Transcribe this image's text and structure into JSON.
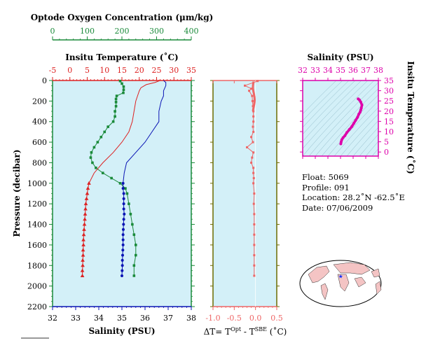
{
  "colors": {
    "oxygen": "#1a8a3a",
    "temperature": "#dd2222",
    "salinity": "#0a14b4",
    "delta": "#ee6666",
    "ts": "#dd00aa",
    "panel_bg": "#d3f0f8",
    "pressure_axis": "#1a8a3a",
    "land": "#f4c4c4"
  },
  "labels": {
    "oxygen_axis": "Optode Oxygen Concentration (μm/kg)",
    "temperature_axis": "Insitu Temperature (˚C)",
    "salinity_axis": "Salinity (PSU)",
    "pressure_axis": "Pressure (decibar)",
    "delta_axis": "ΔT= T",
    "delta_sup1": "Opt",
    "delta_mid": " - T",
    "delta_sup2": "SBE",
    "delta_unit": " (˚C)",
    "ts_top": "Salinity (PSU)",
    "ts_right": "Insitu Temperature (˚C)"
  },
  "info": {
    "float": "Float:  5069",
    "profile": "Profile:  091",
    "location": "Location:  28.2˚N  -62.5˚E",
    "date": "Date:  07/06/2009"
  },
  "chart_data": [
    {
      "type": "line",
      "name": "profile",
      "y_axis": {
        "label": "Pressure (decibar)",
        "range": [
          0,
          2200
        ],
        "ticks": [
          0,
          200,
          400,
          600,
          800,
          1000,
          1200,
          1400,
          1600,
          1800,
          2000,
          2200
        ],
        "inverted": true
      },
      "axes": {
        "oxygen": {
          "range": [
            0,
            400
          ],
          "ticks": [
            0,
            100,
            200,
            300,
            400
          ]
        },
        "temperature": {
          "range": [
            -5,
            35
          ],
          "ticks": [
            -5,
            0,
            5,
            10,
            15,
            20,
            25,
            30,
            35
          ]
        },
        "salinity": {
          "range": [
            32,
            38
          ],
          "ticks": [
            32,
            33,
            34,
            35,
            36,
            37,
            38
          ]
        }
      },
      "series": {
        "oxygen": {
          "p": [
            5,
            30,
            60,
            90,
            120,
            150,
            180,
            210,
            250,
            300,
            350,
            400,
            450,
            500,
            550,
            600,
            650,
            700,
            750,
            800,
            850,
            900,
            950,
            1000,
            1050,
            1100,
            1200,
            1300,
            1400,
            1500,
            1600,
            1700,
            1800,
            1900
          ],
          "o2": [
            195,
            200,
            205,
            205,
            204,
            185,
            183,
            183,
            183,
            180,
            180,
            175,
            160,
            150,
            140,
            130,
            120,
            112,
            110,
            115,
            125,
            145,
            170,
            195,
            210,
            215,
            220,
            225,
            230,
            235,
            240,
            240,
            235,
            235
          ]
        },
        "temperature_continuous": {
          "p": [
            0,
            20,
            40,
            70,
            100,
            150,
            200,
            300,
            400,
            500,
            600,
            700,
            800,
            900,
            1000
          ],
          "t": [
            26,
            24.5,
            22,
            20.5,
            20,
            19.5,
            19,
            18.5,
            18,
            17,
            15,
            12.5,
            9.5,
            7,
            5.5
          ]
        },
        "temperature_markers": {
          "p": [
            1000,
            1050,
            1100,
            1150,
            1200,
            1250,
            1300,
            1350,
            1400,
            1450,
            1500,
            1550,
            1600,
            1650,
            1700,
            1750,
            1800,
            1850,
            1900
          ],
          "t": [
            5.5,
            5.2,
            5.0,
            4.8,
            4.6,
            4.5,
            4.4,
            4.3,
            4.2,
            4.1,
            4.0,
            3.9,
            3.9,
            3.8,
            3.8,
            3.7,
            3.7,
            3.6,
            3.6
          ]
        },
        "salinity_continuous": {
          "p": [
            0,
            20,
            50,
            100,
            150,
            200,
            300,
            400,
            500,
            600,
            700,
            800,
            900,
            1000
          ],
          "s": [
            36.8,
            36.9,
            36.9,
            36.8,
            36.8,
            36.7,
            36.6,
            36.6,
            36.3,
            36.0,
            35.6,
            35.2,
            35.1,
            35.05
          ]
        },
        "salinity_markers": {
          "p": [
            1000,
            1050,
            1100,
            1150,
            1200,
            1250,
            1300,
            1350,
            1400,
            1450,
            1500,
            1550,
            1600,
            1650,
            1700,
            1750,
            1800,
            1850,
            1900
          ],
          "s": [
            35.05,
            35.05,
            35.08,
            35.08,
            35.08,
            35.08,
            35.1,
            35.08,
            35.07,
            35.06,
            35.05,
            35.05,
            35.05,
            35.04,
            35.03,
            35.02,
            35.02,
            35.01,
            35.0
          ]
        }
      }
    },
    {
      "type": "line",
      "name": "delta_t",
      "x_axis": {
        "range": [
          -1.0,
          0.5
        ],
        "ticks": [
          -1.0,
          -0.5,
          0.0,
          0.5
        ],
        "tick_labels": [
          "-1.0",
          "-0.5",
          "0.0",
          "0.5"
        ]
      },
      "series": {
        "p": [
          5,
          50,
          80,
          100,
          150,
          200,
          250,
          300,
          350,
          400,
          450,
          500,
          550,
          600,
          650,
          700,
          750,
          800,
          850,
          900,
          950,
          1000,
          1100,
          1200,
          1300,
          1400,
          1500,
          1600,
          1700,
          1800,
          1900
        ],
        "dt": [
          0.05,
          -0.25,
          -0.1,
          -0.15,
          -0.08,
          -0.07,
          -0.06,
          -0.05,
          -0.05,
          -0.05,
          -0.06,
          -0.05,
          -0.1,
          -0.06,
          -0.2,
          -0.05,
          -0.08,
          -0.1,
          -0.05,
          -0.05,
          -0.04,
          -0.05,
          -0.03,
          -0.04,
          -0.03,
          -0.03,
          -0.03,
          -0.03,
          -0.03,
          -0.03,
          -0.03
        ]
      }
    },
    {
      "type": "scatter",
      "name": "t_s_diagram",
      "x_axis": {
        "label": "Salinity (PSU)",
        "range": [
          32,
          38
        ],
        "ticks": [
          32,
          33,
          34,
          35,
          36,
          37,
          38
        ]
      },
      "y_axis": {
        "label": "Insitu Temperature (˚C)",
        "range": [
          -2,
          35
        ],
        "ticks": [
          0,
          5,
          10,
          15,
          20,
          25,
          30,
          35
        ]
      },
      "series": {
        "s": [
          35.02,
          35.05,
          35.1,
          35.2,
          35.35,
          35.5,
          35.7,
          35.9,
          36.05,
          36.2,
          36.35,
          36.45,
          36.55,
          36.6,
          36.65,
          36.7,
          36.6,
          36.5,
          36.4
        ],
        "t": [
          4,
          5,
          6,
          7,
          8,
          9.5,
          11,
          12.5,
          14,
          15.5,
          17,
          18.5,
          19.5,
          20.5,
          21.5,
          23,
          24.5,
          25.5,
          26
        ]
      }
    }
  ],
  "map": {
    "marker_lat": 28.2,
    "marker_lon": -62.5
  }
}
